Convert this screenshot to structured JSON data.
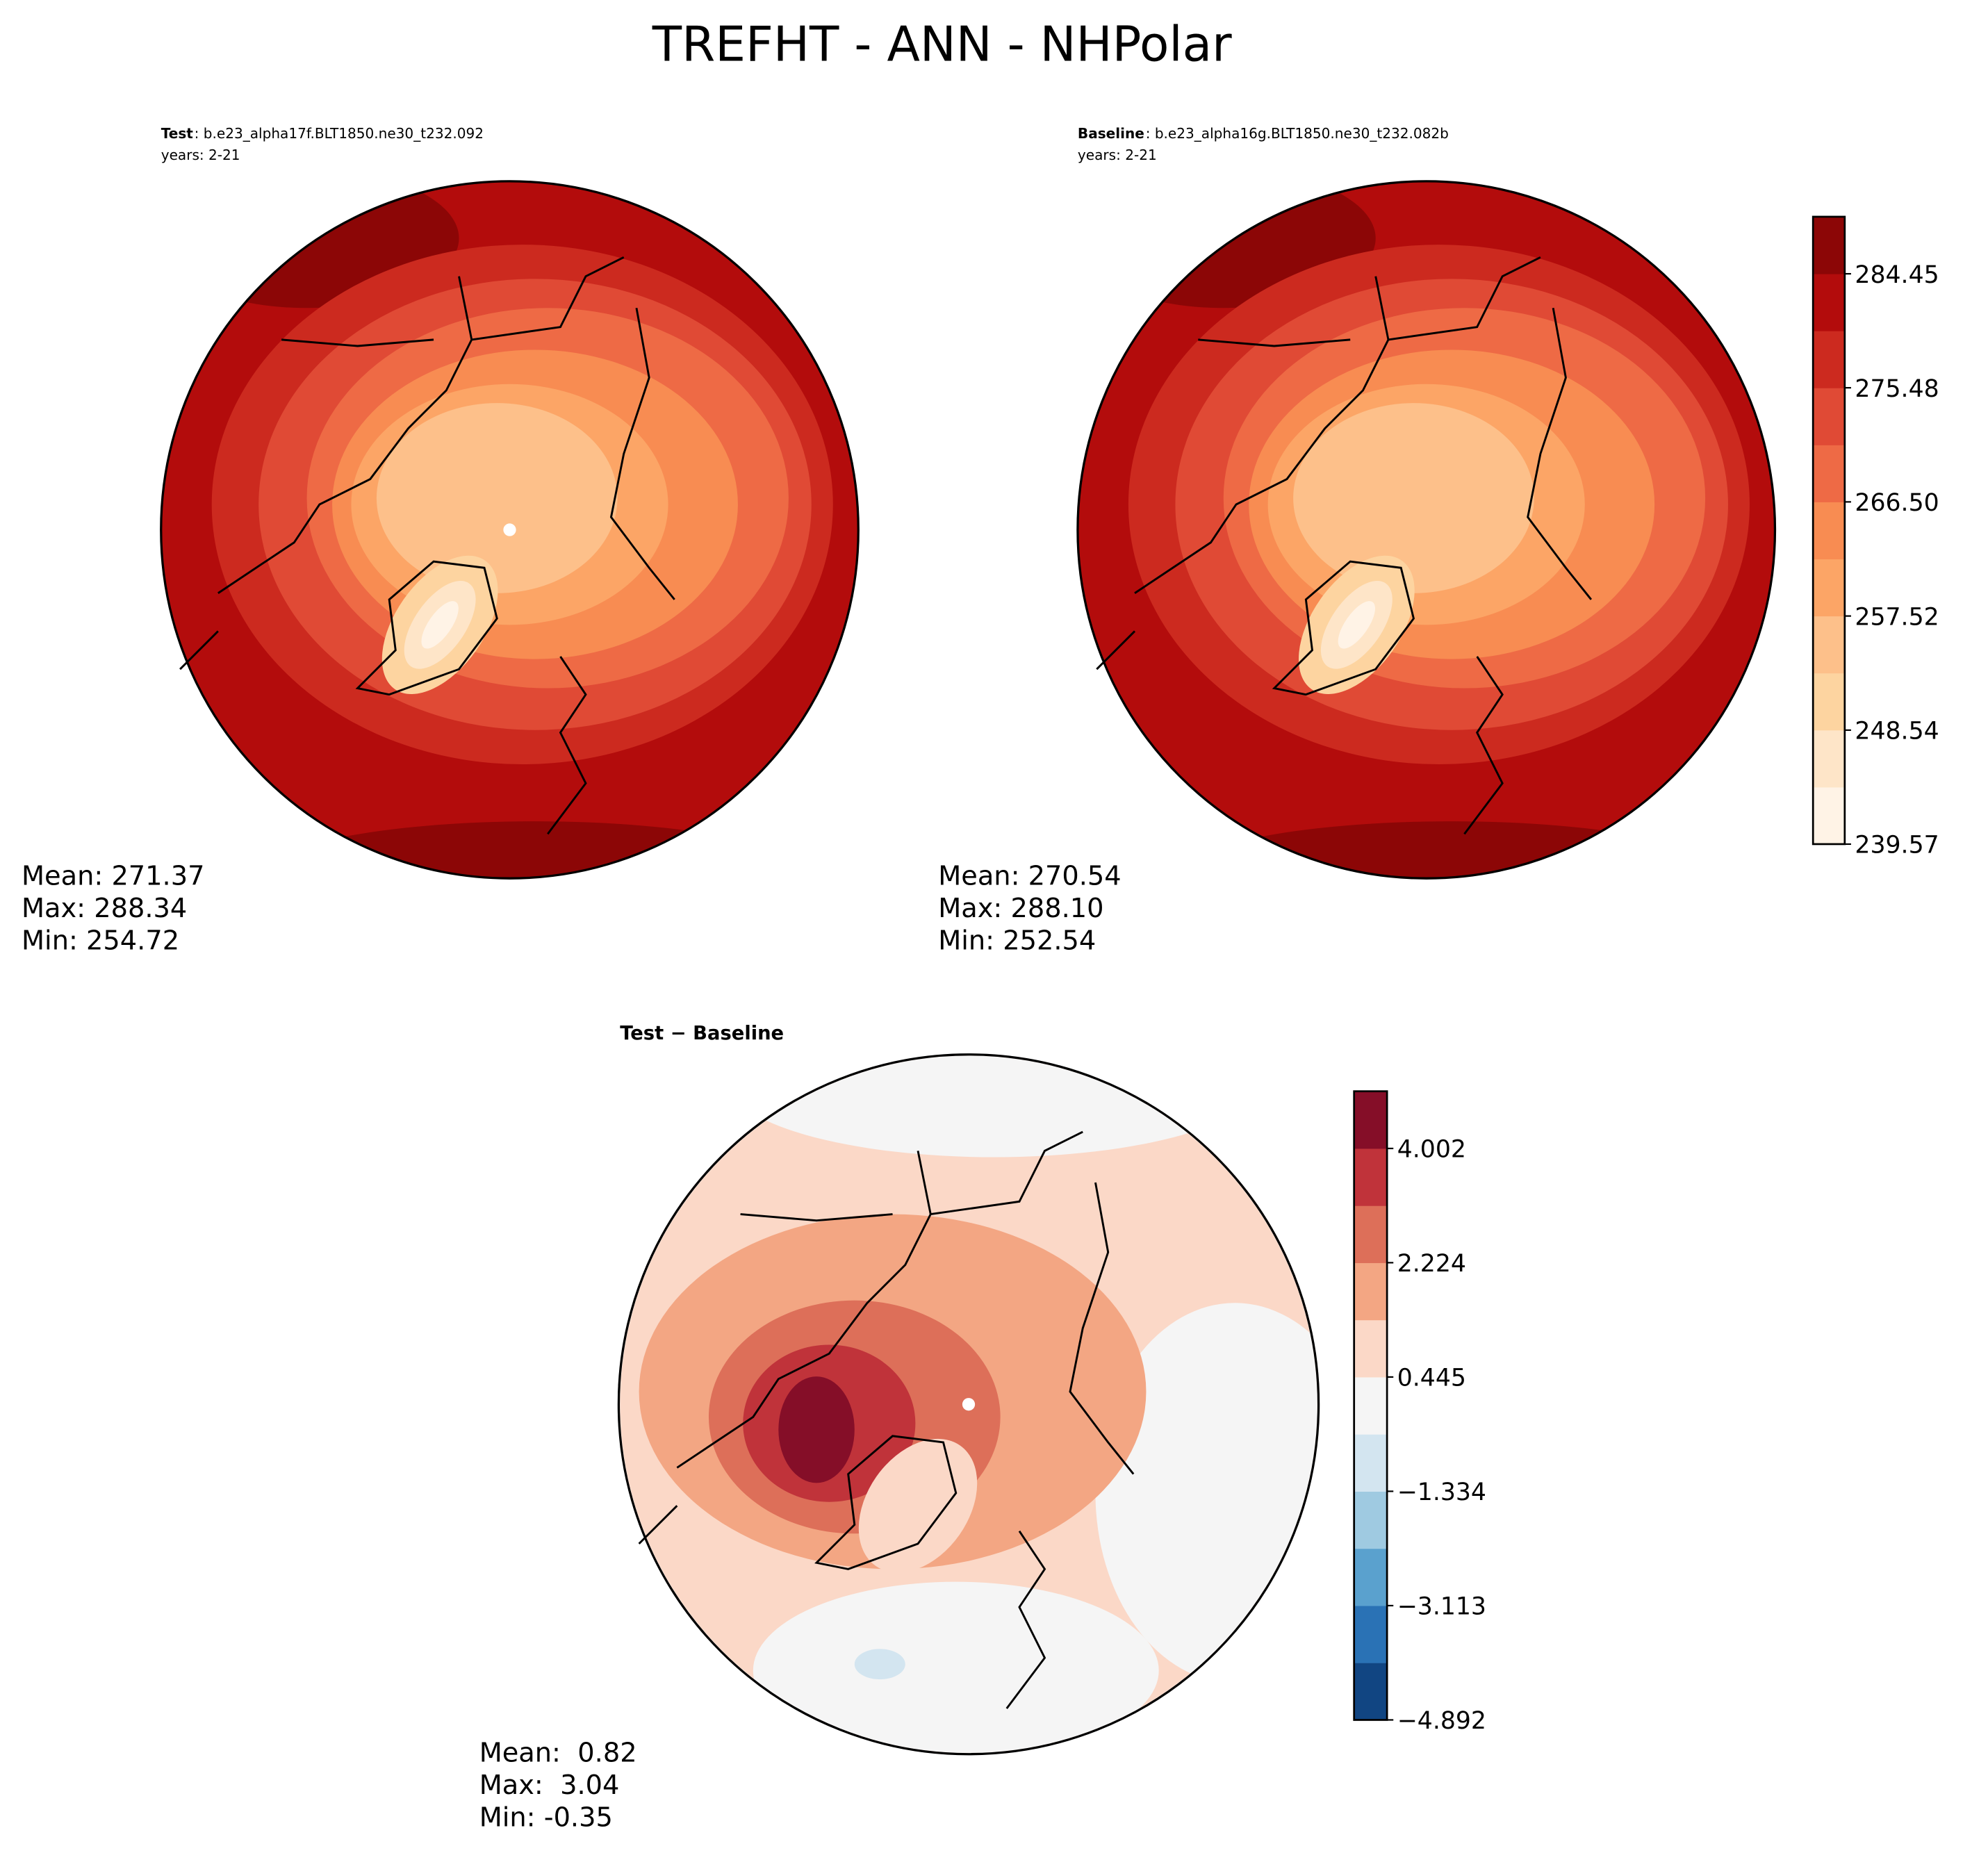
{
  "chart_data": {
    "type": "polar-map",
    "title": "TREFHT - ANN - NHPolar",
    "panels": [
      {
        "label": "Test",
        "case": ": b.e23_alpha17f.BLT1850.ne30_t232.092",
        "years": "years: 2-21",
        "stats": [
          "Mean: 271.37",
          "Max: 288.34",
          "Min: 254.72"
        ]
      },
      {
        "label": "Baseline",
        "case": ": b.e23_alpha16g.BLT1850.ne30_t232.082b",
        "years": "years: 2-21",
        "stats": [
          "Mean: 270.54",
          "Max: 288.10",
          "Min: 252.54"
        ]
      },
      {
        "label": "Test − Baseline",
        "stats": [
          "Mean:  0.82",
          "Max:  3.04",
          "Min: -0.35"
        ]
      }
    ],
    "colorbars": [
      {
        "ylim": [
          239.57,
          288.94
        ],
        "yticks": [
          239.57,
          248.54,
          257.52,
          {
            "value": 266.5,
            "label": "266.50"
          },
          275.48,
          284.45
        ],
        "colors": [
          "#fff3e6",
          "#fee5c8",
          "#fdd4a0",
          "#fdc08a",
          "#fca566",
          "#f88c52",
          "#ee6a45",
          "#e04a35",
          "#cc2a1f",
          "#b30c0c",
          "#8c0606"
        ]
      },
      {
        "ylim": [
          -4.892,
          4.892
        ],
        "yticks": [
          {
            "value": -4.892,
            "label": "−4.892"
          },
          {
            "value": -3.113,
            "label": "−3.113"
          },
          {
            "value": -1.334,
            "label": "−1.334"
          },
          0.445,
          2.224,
          4.002
        ],
        "colors": [
          "#114582",
          "#2a72b5",
          "#5aa1ce",
          "#9fcae1",
          "#d3e5f0",
          "#f5f5f5",
          "#fbd8c7",
          "#f3a683",
          "#dd6f59",
          "#c0333a",
          "#850e28"
        ]
      }
    ]
  }
}
